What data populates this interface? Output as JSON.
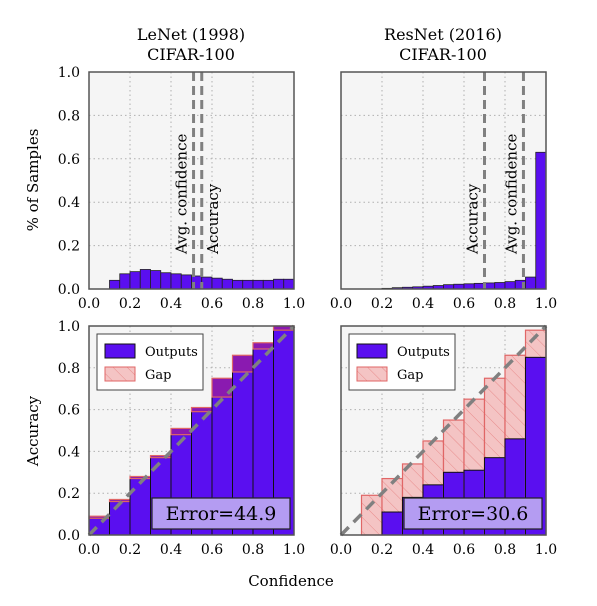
{
  "figure": {
    "xlabel": "Confidence",
    "colors": {
      "outputs": "#5a0ff0",
      "gap_fill": "#f4c4c4",
      "gap_edge": "#e06666",
      "hist": "#5a0ff0",
      "error_box": "#b49cf2",
      "panel_bg": "#f5f5f5",
      "dashed": "#808080"
    }
  },
  "chart_data": [
    {
      "panel": "hist-lenet",
      "type": "bar",
      "title": "LeNet (1998)",
      "subtitle": "CIFAR-100",
      "ylabel": "% of Samples",
      "xlim": [
        0,
        1
      ],
      "ylim": [
        0,
        1
      ],
      "xticks": [
        "0.0",
        "0.2",
        "0.4",
        "0.6",
        "0.8",
        "1.0"
      ],
      "yticks": [
        "0.0",
        "0.2",
        "0.4",
        "0.6",
        "0.8",
        "1.0"
      ],
      "bin_width": 0.05,
      "x": [
        0.1,
        0.15,
        0.2,
        0.25,
        0.3,
        0.35,
        0.4,
        0.45,
        0.5,
        0.55,
        0.6,
        0.65,
        0.7,
        0.75,
        0.8,
        0.85,
        0.9,
        0.95
      ],
      "values": [
        0.04,
        0.07,
        0.08,
        0.09,
        0.085,
        0.075,
        0.07,
        0.065,
        0.06,
        0.055,
        0.05,
        0.045,
        0.04,
        0.04,
        0.04,
        0.04,
        0.045,
        0.045
      ],
      "vlines": [
        {
          "label": "Avg. confidence",
          "x": 0.51
        },
        {
          "label": "Accuracy",
          "x": 0.55
        }
      ],
      "grid": true
    },
    {
      "panel": "hist-resnet",
      "type": "bar",
      "title": "ResNet (2016)",
      "subtitle": "CIFAR-100",
      "ylabel": "",
      "xlim": [
        0,
        1
      ],
      "ylim": [
        0,
        1
      ],
      "xticks": [
        "0.0",
        "0.2",
        "0.4",
        "0.6",
        "0.8",
        "1.0"
      ],
      "bin_width": 0.05,
      "x": [
        0.2,
        0.25,
        0.3,
        0.35,
        0.4,
        0.45,
        0.5,
        0.55,
        0.6,
        0.65,
        0.7,
        0.75,
        0.8,
        0.85,
        0.9,
        0.95
      ],
      "values": [
        0.003,
        0.006,
        0.008,
        0.01,
        0.013,
        0.016,
        0.02,
        0.022,
        0.024,
        0.026,
        0.028,
        0.03,
        0.034,
        0.04,
        0.055,
        0.63
      ],
      "vlines": [
        {
          "label": "Accuracy",
          "x": 0.7
        },
        {
          "label": "Avg. confidence",
          "x": 0.89
        }
      ],
      "grid": true
    },
    {
      "panel": "rel-lenet",
      "type": "bar",
      "ylabel": "Accuracy",
      "xlim": [
        0,
        1
      ],
      "ylim": [
        0,
        1
      ],
      "xticks": [
        "0.0",
        "0.2",
        "0.4",
        "0.6",
        "0.8",
        "1.0"
      ],
      "yticks": [
        "0.0",
        "0.2",
        "0.4",
        "0.6",
        "0.8",
        "1.0"
      ],
      "bin_width": 0.1,
      "x": [
        0.0,
        0.1,
        0.2,
        0.3,
        0.4,
        0.5,
        0.6,
        0.7,
        0.8,
        0.9
      ],
      "series": [
        {
          "name": "Outputs",
          "values": [
            0.08,
            0.16,
            0.27,
            0.37,
            0.48,
            0.59,
            0.66,
            0.78,
            0.89,
            0.98
          ]
        },
        {
          "name": "Gap",
          "values": [
            0.09,
            0.17,
            0.28,
            0.38,
            0.51,
            0.61,
            0.75,
            0.86,
            0.92,
            1.0
          ]
        }
      ],
      "error_label": "Error=44.9",
      "legend": "top-left",
      "diagonal": true,
      "grid": true
    },
    {
      "panel": "rel-resnet",
      "type": "bar",
      "ylabel": "",
      "xlim": [
        0,
        1
      ],
      "ylim": [
        0,
        1
      ],
      "xticks": [
        "0.0",
        "0.2",
        "0.4",
        "0.6",
        "0.8",
        "1.0"
      ],
      "bin_width": 0.1,
      "x": [
        0.0,
        0.1,
        0.2,
        0.3,
        0.4,
        0.5,
        0.6,
        0.7,
        0.8,
        0.9
      ],
      "series": [
        {
          "name": "Outputs",
          "values": [
            0,
            0,
            0.11,
            0.18,
            0.24,
            0.3,
            0.31,
            0.37,
            0.46,
            0.85
          ]
        },
        {
          "name": "Gap",
          "values": [
            0,
            0.19,
            0.27,
            0.34,
            0.45,
            0.55,
            0.65,
            0.75,
            0.86,
            0.98
          ]
        }
      ],
      "error_label": "Error=30.6",
      "legend": "top-left",
      "diagonal": true,
      "grid": true
    }
  ]
}
